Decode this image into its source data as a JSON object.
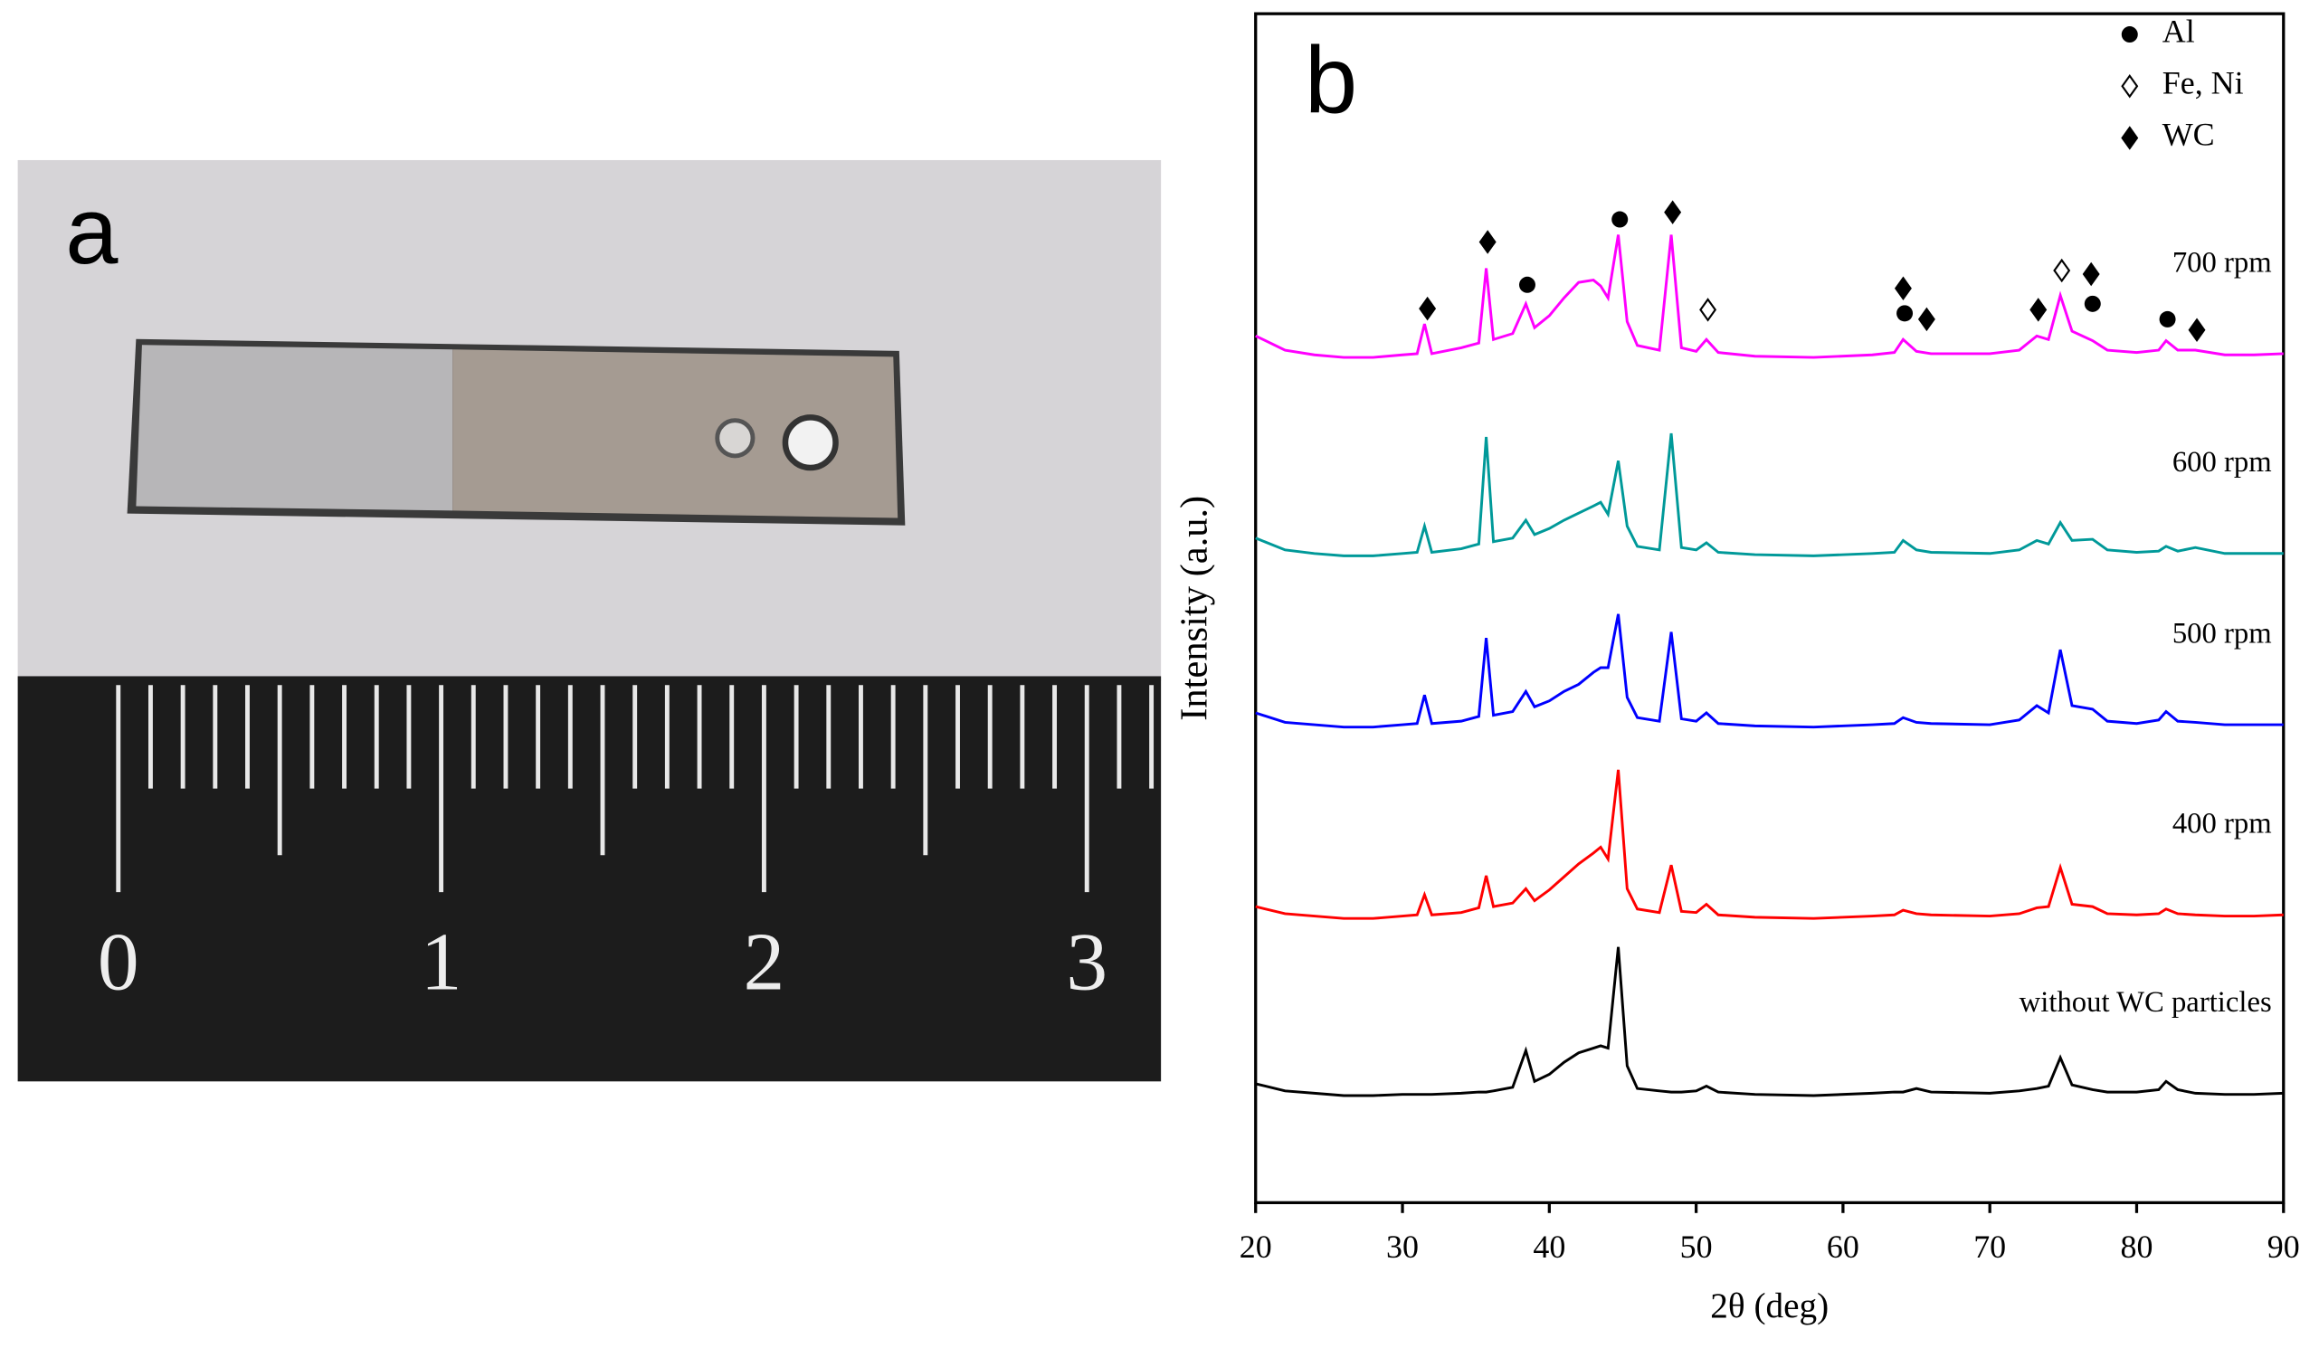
{
  "photo": {
    "label": "a",
    "ruler_labels": [
      "0",
      "1",
      "2",
      "3"
    ]
  },
  "chart_data": {
    "type": "line",
    "label": "b",
    "xlabel": "2θ (deg)",
    "ylabel": "Intensity (a.u.)",
    "xlim": [
      20,
      90
    ],
    "xticks": [
      20,
      30,
      40,
      50,
      60,
      70,
      80,
      90
    ],
    "ylim": [
      0,
      100
    ],
    "x": [
      20,
      22,
      24,
      26,
      28,
      30,
      31,
      31.5,
      32,
      34,
      35.2,
      35.7,
      36.2,
      37.5,
      38.4,
      39,
      40,
      41,
      42,
      43,
      43.5,
      44,
      44.7,
      45.3,
      46,
      47.5,
      48.3,
      49,
      50,
      50.7,
      51.5,
      54,
      58,
      62,
      63.5,
      64.1,
      65,
      66,
      70,
      72,
      73.2,
      74,
      74.8,
      75.6,
      77,
      78,
      80,
      81.5,
      82,
      82.8,
      84,
      86,
      88,
      90
    ],
    "series": [
      {
        "name": "700 rpm",
        "color": "#ff00ff",
        "values": [
          72.9,
          71.7,
          71.3,
          71.1,
          71.1,
          71.3,
          71.4,
          73.9,
          71.4,
          71.9,
          72.3,
          78.6,
          72.6,
          73.1,
          75.6,
          73.6,
          74.6,
          76.1,
          77.4,
          77.6,
          77.1,
          76.1,
          81.4,
          74.1,
          72.1,
          71.7,
          81.4,
          71.9,
          71.6,
          72.6,
          71.5,
          71.2,
          71.1,
          71.3,
          71.5,
          72.6,
          71.6,
          71.4,
          71.4,
          71.7,
          72.9,
          72.6,
          76.3,
          73.3,
          72.5,
          71.7,
          71.5,
          71.7,
          72.5,
          71.7,
          71.7,
          71.3,
          71.3,
          71.4
        ]
      },
      {
        "name": "600 rpm",
        "color": "#009999",
        "values": [
          55.9,
          54.9,
          54.6,
          54.4,
          54.4,
          54.6,
          54.7,
          56.9,
          54.7,
          55.0,
          55.4,
          64.4,
          55.6,
          55.9,
          57.4,
          56.2,
          56.7,
          57.4,
          58.0,
          58.6,
          58.9,
          57.9,
          62.4,
          56.9,
          55.2,
          54.9,
          64.7,
          55.1,
          54.9,
          55.5,
          54.7,
          54.5,
          54.4,
          54.6,
          54.7,
          55.7,
          54.9,
          54.7,
          54.6,
          54.9,
          55.7,
          55.4,
          57.2,
          55.7,
          55.8,
          54.9,
          54.7,
          54.8,
          55.2,
          54.8,
          55.1,
          54.6,
          54.6,
          54.6
        ]
      },
      {
        "name": "500 rpm",
        "color": "#0000ff",
        "values": [
          41.2,
          40.4,
          40.2,
          40.0,
          40.0,
          40.2,
          40.3,
          42.7,
          40.3,
          40.5,
          40.9,
          47.5,
          41.0,
          41.3,
          43.0,
          41.7,
          42.2,
          43.0,
          43.6,
          44.6,
          45.0,
          45.0,
          49.5,
          42.5,
          40.8,
          40.5,
          48.0,
          40.7,
          40.5,
          41.2,
          40.3,
          40.1,
          40.0,
          40.2,
          40.3,
          40.8,
          40.4,
          40.3,
          40.2,
          40.6,
          41.8,
          41.2,
          46.5,
          41.8,
          41.5,
          40.5,
          40.3,
          40.6,
          41.3,
          40.5,
          40.4,
          40.2,
          40.2,
          40.2
        ]
      },
      {
        "name": "400 rpm",
        "color": "#ff0000",
        "values": [
          24.9,
          24.3,
          24.1,
          23.9,
          23.9,
          24.1,
          24.2,
          25.9,
          24.2,
          24.4,
          24.8,
          27.5,
          24.9,
          25.2,
          26.4,
          25.4,
          26.3,
          27.4,
          28.5,
          29.4,
          29.9,
          28.9,
          36.4,
          26.4,
          24.7,
          24.4,
          28.4,
          24.5,
          24.4,
          25.1,
          24.2,
          24.0,
          23.9,
          24.1,
          24.2,
          24.6,
          24.3,
          24.2,
          24.1,
          24.3,
          24.8,
          24.9,
          28.2,
          25.1,
          24.9,
          24.3,
          24.2,
          24.3,
          24.7,
          24.3,
          24.2,
          24.1,
          24.1,
          24.2
        ]
      },
      {
        "name": "without WC particles",
        "color": "#000000",
        "values": [
          10.0,
          9.4,
          9.2,
          9.0,
          9.0,
          9.1,
          9.1,
          9.1,
          9.1,
          9.2,
          9.3,
          9.3,
          9.4,
          9.7,
          12.8,
          10.2,
          10.8,
          11.8,
          12.6,
          13.0,
          13.2,
          13.0,
          21.5,
          11.5,
          9.6,
          9.4,
          9.3,
          9.3,
          9.4,
          9.8,
          9.3,
          9.1,
          9.0,
          9.2,
          9.3,
          9.3,
          9.6,
          9.3,
          9.2,
          9.4,
          9.6,
          9.8,
          12.2,
          9.9,
          9.5,
          9.3,
          9.3,
          9.5,
          10.2,
          9.5,
          9.2,
          9.1,
          9.1,
          9.2
        ]
      }
    ],
    "phases": [
      {
        "name": "Al",
        "marker": "circle",
        "x": [
          38.5,
          44.8,
          64.2,
          77.0,
          82.1
        ],
        "y": [
          77.2,
          82.7,
          74.8,
          75.6,
          74.3
        ]
      },
      {
        "name": "Fe, Ni",
        "marker": "open-diamond",
        "x": [
          50.8,
          74.9
        ],
        "y": [
          75.1,
          78.4
        ]
      },
      {
        "name": "WC",
        "marker": "diamond",
        "x": [
          31.7,
          35.8,
          48.4,
          64.1,
          65.7,
          73.3,
          76.9,
          84.1
        ],
        "y": [
          75.2,
          80.8,
          83.3,
          76.9,
          74.3,
          75.1,
          78.1,
          73.4
        ]
      }
    ]
  }
}
